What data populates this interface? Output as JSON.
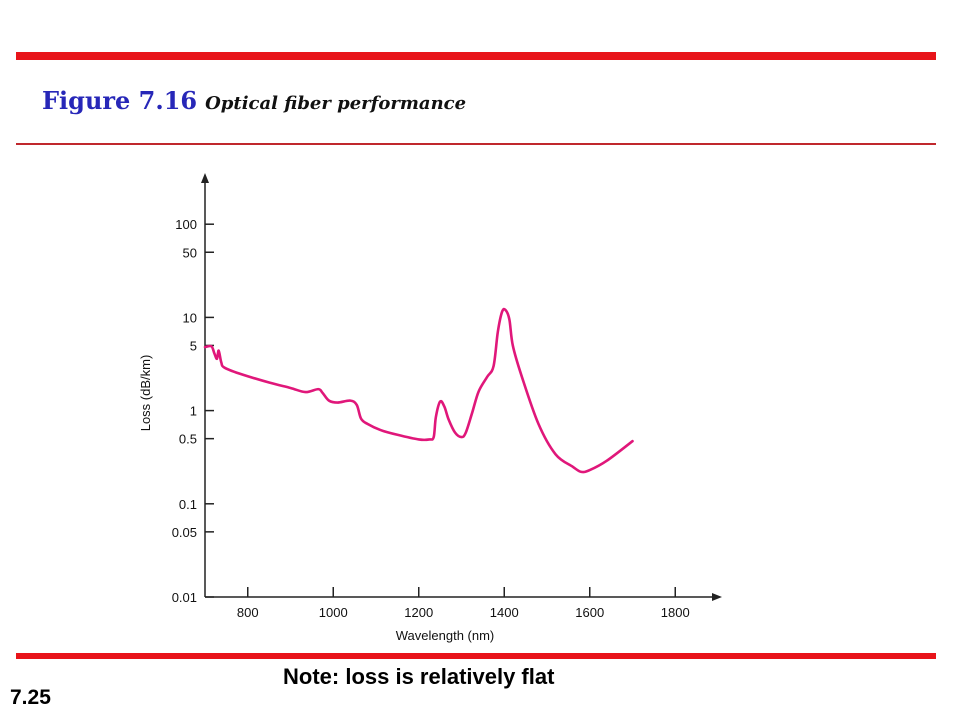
{
  "slide": {
    "figure_number": "Figure 7.16",
    "figure_caption": "Optical fiber performance",
    "note": "Note: loss is relatively flat",
    "slide_number": "7.25"
  },
  "colors": {
    "rule": "#e8141a",
    "title_blue": "#2727b8",
    "curve": "#e0177a",
    "axis": "#222222"
  },
  "chart_data": {
    "type": "line",
    "title": "",
    "xlabel": "Wavelength (nm)",
    "ylabel": "Loss (dB/km)",
    "xlim": [
      700,
      1900
    ],
    "ylim": [
      0.01,
      250
    ],
    "yscale": "log",
    "grid": false,
    "x_ticks": [
      800,
      1000,
      1200,
      1400,
      1600,
      1800
    ],
    "x_tick_labels": [
      "800",
      "1000",
      "1200",
      "1400",
      "1600",
      "1800"
    ],
    "y_ticks": [
      100,
      50,
      10,
      5,
      1,
      0.5,
      0.1,
      0.05,
      0.01
    ],
    "y_tick_labels": [
      "100",
      "50",
      "10",
      "5",
      "1",
      "0.5",
      "0.1",
      "0.05",
      "0.01"
    ],
    "series": [
      {
        "x": [
          700,
          715,
          722,
          728,
          732,
          738,
          745,
          780,
          850,
          900,
          935,
          965,
          975,
          990,
          1010,
          1040,
          1055,
          1065,
          1080,
          1110,
          1150,
          1200,
          1225,
          1235,
          1240,
          1250,
          1260,
          1270,
          1285,
          1300,
          1310,
          1325,
          1340,
          1360,
          1375,
          1385,
          1395,
          1403,
          1412,
          1420,
          1440,
          1480,
          1520,
          1560,
          1580,
          1600,
          1640,
          1700
        ],
        "y": [
          4.8,
          4.9,
          4.1,
          3.6,
          4.4,
          3.3,
          2.9,
          2.5,
          2.0,
          1.75,
          1.58,
          1.7,
          1.55,
          1.28,
          1.22,
          1.28,
          1.15,
          0.82,
          0.72,
          0.62,
          0.55,
          0.49,
          0.49,
          0.52,
          0.85,
          1.25,
          1.1,
          0.8,
          0.58,
          0.52,
          0.58,
          0.95,
          1.6,
          2.3,
          3.0,
          7.0,
          11.5,
          12.0,
          9.5,
          5.0,
          2.4,
          0.72,
          0.34,
          0.25,
          0.22,
          0.23,
          0.29,
          0.47
        ]
      }
    ]
  }
}
